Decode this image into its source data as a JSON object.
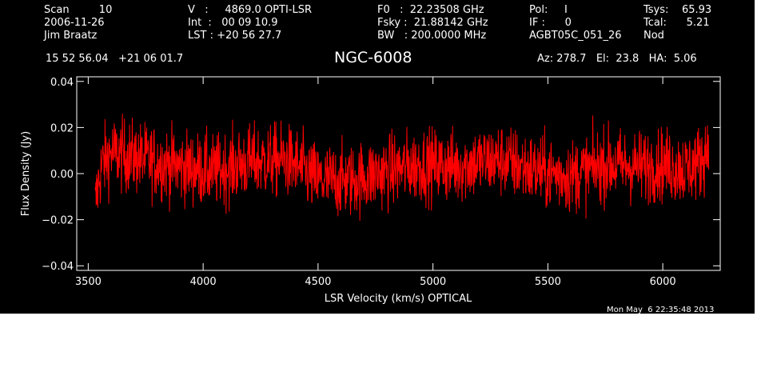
{
  "header": {
    "col1": [
      "Scan         10",
      "2006-11-26",
      "Jim Braatz"
    ],
    "col2": [
      "V   :     4869.0 OPTI-LSR",
      "Int  :   00 09 10.9",
      "LST : +20 56 27.7"
    ],
    "col3": [
      "F0   :  22.23508 GHz",
      "Fsky :  21.88142 GHz",
      "BW   : 200.0000 MHz"
    ],
    "col4": [
      "Pol:     I",
      "IF :      0",
      "AGBT05C_051_26"
    ],
    "col5": [
      "Tsys:    65.93",
      "Tcal:      5.21",
      "Nod"
    ],
    "coords": "15 52 56.04   +21 06 01.7",
    "azelha": "Az: 278.7   El:  23.8   HA:  5.06",
    "timestamp": "Mon May  6 22:35:48 2013"
  },
  "chart_data": {
    "type": "line",
    "title": "NGC-6008",
    "xlabel": "LSR Velocity (km/s) OPTICAL",
    "ylabel": "Flux Density (Jy)",
    "xlim": [
      3450,
      6250
    ],
    "ylim": [
      -0.042,
      0.042
    ],
    "x_ticks": [
      3500,
      4000,
      4500,
      5000,
      5500,
      6000
    ],
    "x_tick_labels": [
      "3500",
      "4000",
      "4500",
      "5000",
      "5500",
      "6000"
    ],
    "y_ticks": [
      -0.04,
      -0.02,
      0.0,
      0.02,
      0.04
    ],
    "y_tick_labels": [
      "−0.04",
      "−0.02",
      "0.00",
      "0.02",
      "0.04"
    ],
    "grid": false,
    "series": [
      {
        "color": "#ff0000",
        "x_range": [
          3530,
          6200
        ],
        "noise_rms_jy": 0.008,
        "envelope_x": [
          3530,
          3545,
          3560,
          3600,
          3650,
          3750,
          3900,
          4050,
          4200,
          4350,
          4400,
          4500,
          4650,
          4800,
          4950,
          5100,
          5200,
          5300,
          5450,
          5600,
          5750,
          5900,
          6000,
          6100,
          6160,
          6190,
          6200
        ],
        "envelope_y": [
          -0.014,
          -0.004,
          0.004,
          0.009,
          0.008,
          0.006,
          0.003,
          0.001,
          0.005,
          0.006,
          0.004,
          -0.003,
          -0.003,
          0.001,
          0.004,
          0.003,
          0.005,
          0.006,
          0.001,
          -0.001,
          0.004,
          0.003,
          0.004,
          0.002,
          0.005,
          0.01,
          0.014
        ]
      }
    ]
  }
}
